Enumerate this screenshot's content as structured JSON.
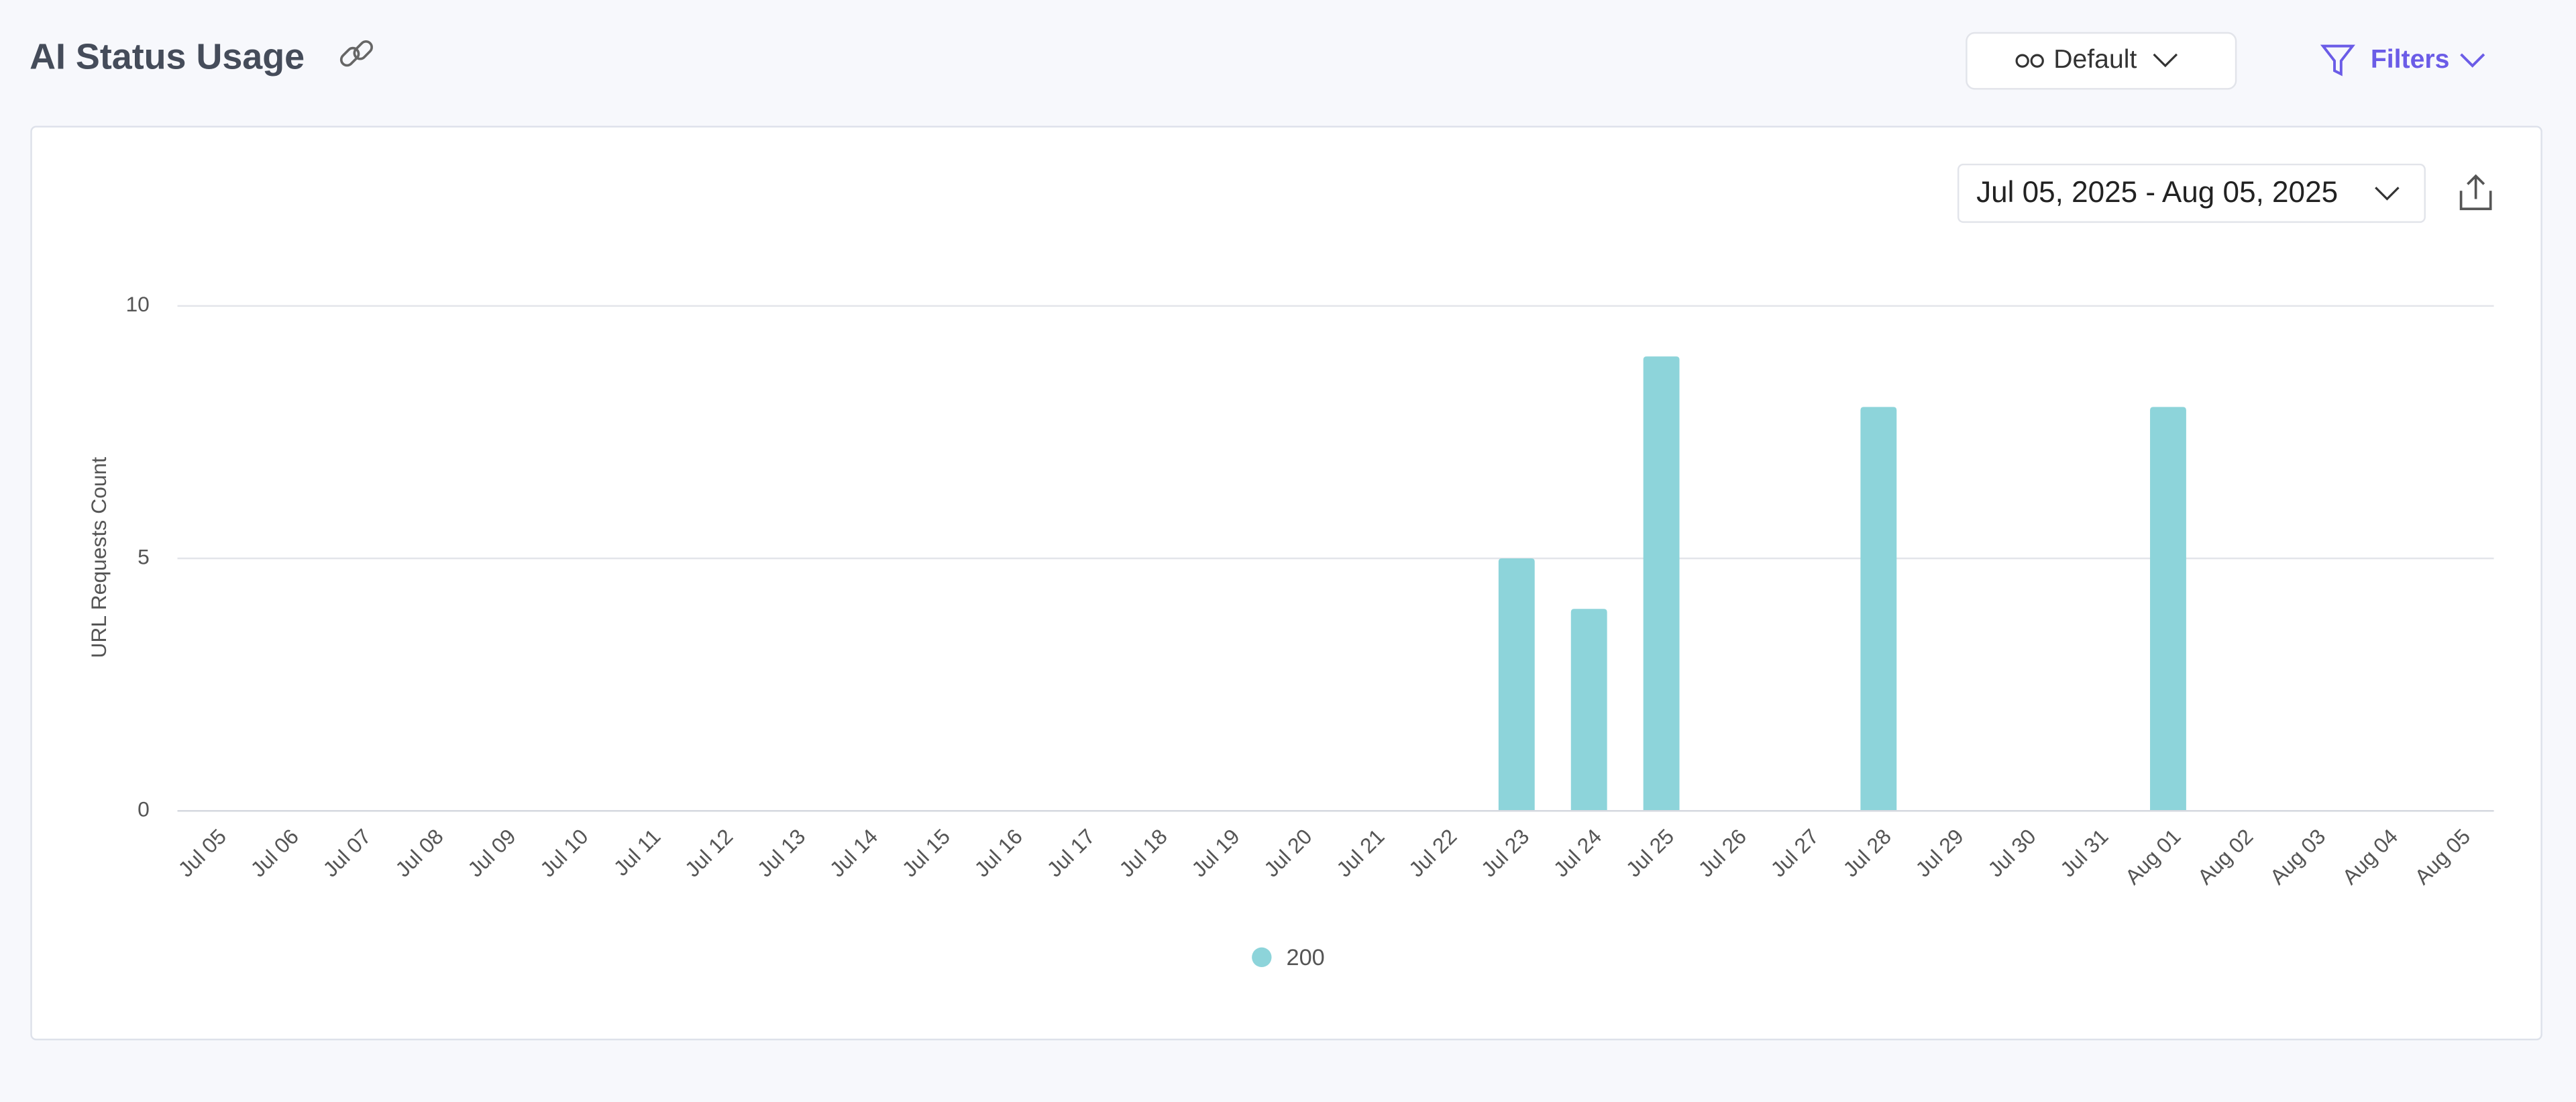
{
  "header": {
    "title": "AI Status Usage",
    "view": "Default",
    "filters": "Filters"
  },
  "chart_data": {
    "type": "bar",
    "date_range": "Jul 05, 2025 - Aug 05, 2025",
    "y_label": "URL Requests Count",
    "categories": [
      "Jul 05",
      "Jul 06",
      "Jul 07",
      "Jul 08",
      "Jul 09",
      "Jul 10",
      "Jul 11",
      "Jul 12",
      "Jul 13",
      "Jul 14",
      "Jul 15",
      "Jul 16",
      "Jul 17",
      "Jul 18",
      "Jul 19",
      "Jul 20",
      "Jul 21",
      "Jul 22",
      "Jul 23",
      "Jul 24",
      "Jul 25",
      "Jul 26",
      "Jul 27",
      "Jul 28",
      "Jul 29",
      "Jul 30",
      "Jul 31",
      "Aug 01",
      "Aug 02",
      "Aug 03",
      "Aug 04",
      "Aug 05"
    ],
    "series": [
      {
        "name": "200",
        "color": "#8dd4da",
        "values": [
          0,
          0,
          0,
          0,
          0,
          0,
          0,
          0,
          0,
          0,
          0,
          0,
          0,
          0,
          0,
          0,
          0,
          0,
          5,
          4,
          9,
          0,
          0,
          8,
          0,
          0,
          0,
          8,
          0,
          0,
          0,
          0
        ]
      }
    ],
    "ylim": [
      0,
      10
    ],
    "yticks": [
      0,
      5,
      10
    ],
    "grid": true
  }
}
